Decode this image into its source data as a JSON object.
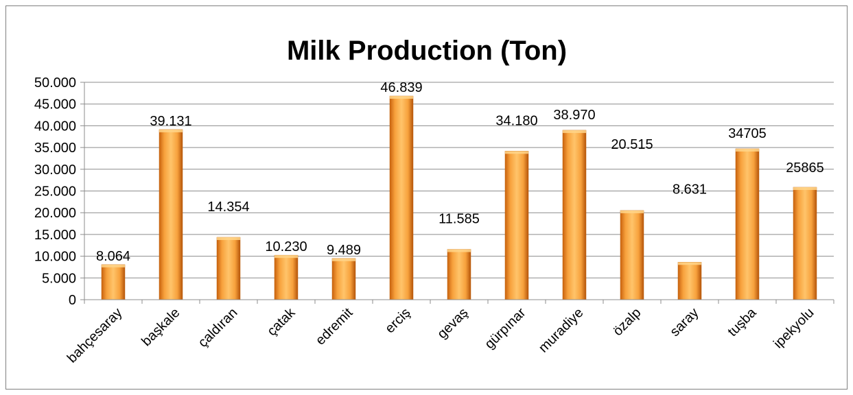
{
  "chart_data": {
    "type": "bar",
    "title": "Milk Production (Ton)",
    "xlabel": "",
    "ylabel": "",
    "ylim": [
      0,
      50000
    ],
    "yticks": [
      0,
      5000,
      10000,
      15000,
      20000,
      25000,
      30000,
      35000,
      40000,
      45000,
      50000
    ],
    "ytick_labels": [
      "0",
      "5.000",
      "10.000",
      "15.000",
      "20.000",
      "25.000",
      "30.000",
      "35.000",
      "40.000",
      "45.000",
      "50.000"
    ],
    "categories": [
      "bahçesaray",
      "başkale",
      "çaldıran",
      "çatak",
      "edremit",
      "erciş",
      "gevaş",
      "gürpınar",
      "muradiye",
      "özalp",
      "saray",
      "tuşba",
      "ipekyolu"
    ],
    "values": [
      8064,
      39131,
      14354,
      10230,
      9489,
      46839,
      11585,
      34180,
      38970,
      20515,
      8631,
      34705,
      25865
    ],
    "data_labels": [
      "8.064",
      "39.131",
      "14.354",
      "10.230",
      "9.489",
      "46.839",
      "11.585",
      "34.180",
      "38.970",
      "20.515",
      "8.631",
      "34705",
      "25865"
    ],
    "grid": true,
    "legend": "none",
    "bar_color": "#F79A2E"
  }
}
